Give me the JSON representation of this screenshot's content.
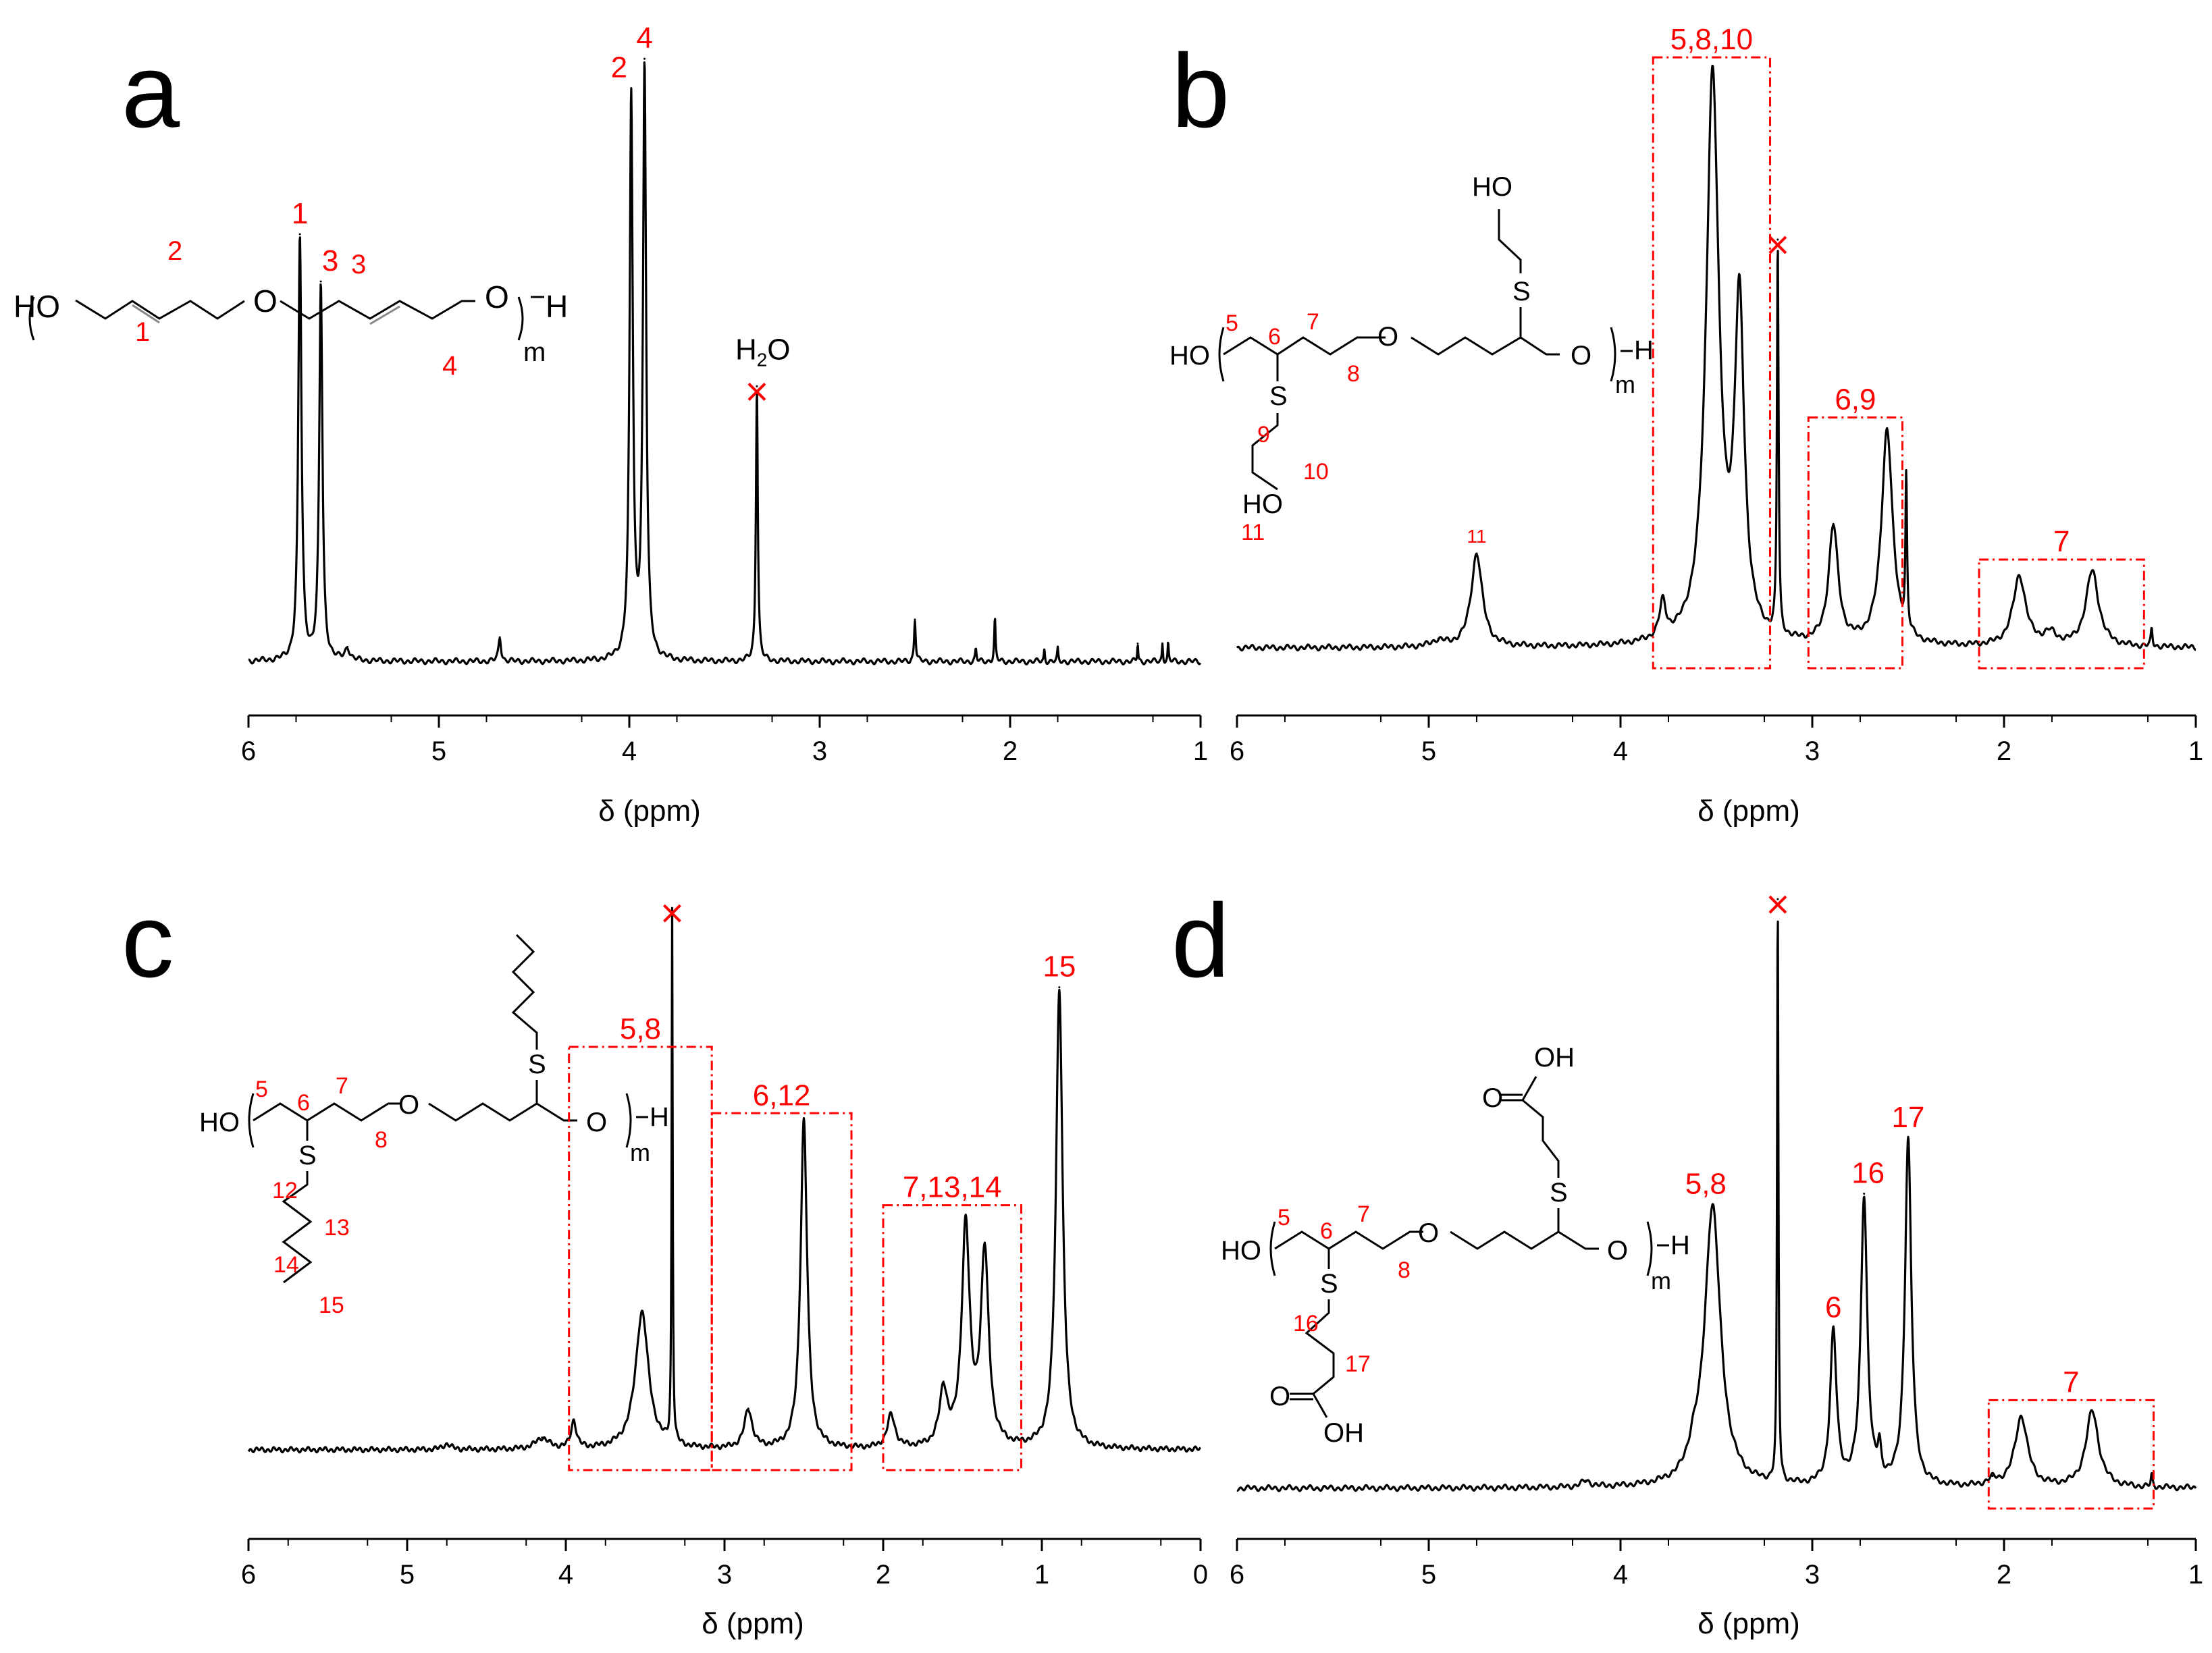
{
  "colors": {
    "spectrum": "#000000",
    "annotation": "#ff0000",
    "axis": "#000000"
  },
  "chart_data": [
    {
      "type": "line",
      "panel": "a",
      "xlabel": "δ (ppm)",
      "xlim": [
        6,
        1
      ],
      "x_reversed": true,
      "xticks": [
        6,
        5,
        4,
        3,
        2,
        1
      ],
      "xtick_labels": [
        "6",
        "5",
        "4",
        "3",
        "2",
        "1"
      ],
      "ylim": [
        0,
        1
      ],
      "baseline": 0.02,
      "series": [
        {
          "name": "spectrum",
          "peaks": [
            {
              "x": 5.73,
              "h": 0.71,
              "w": 0.01
            },
            {
              "x": 5.62,
              "h": 0.63,
              "w": 0.01
            },
            {
              "x": 5.48,
              "h": 0.02,
              "w": 0.015
            },
            {
              "x": 4.68,
              "h": 0.04,
              "w": 0.008
            },
            {
              "x": 3.99,
              "h": 0.94,
              "w": 0.01
            },
            {
              "x": 3.92,
              "h": 0.99,
              "w": 0.01
            },
            {
              "x": 3.33,
              "h": 0.46,
              "w": 0.006
            },
            {
              "x": 2.5,
              "h": 0.07,
              "w": 0.005
            },
            {
              "x": 2.18,
              "h": 0.02,
              "w": 0.004
            },
            {
              "x": 2.08,
              "h": 0.07,
              "w": 0.004
            },
            {
              "x": 1.82,
              "h": 0.02,
              "w": 0.003
            },
            {
              "x": 1.75,
              "h": 0.02,
              "w": 0.003
            },
            {
              "x": 1.33,
              "h": 0.03,
              "w": 0.003
            },
            {
              "x": 1.2,
              "h": 0.03,
              "w": 0.003
            },
            {
              "x": 1.17,
              "h": 0.03,
              "w": 0.003
            }
          ]
        }
      ],
      "peak_labels": [
        {
          "x": 5.73,
          "text": "1"
        },
        {
          "x": 5.62,
          "text": "3"
        },
        {
          "x": 3.99,
          "text": "2"
        },
        {
          "x": 3.92,
          "text": "4"
        }
      ],
      "solvent_peaks": [
        3.33
      ],
      "water_label": {
        "h": "H",
        "sub": "2",
        "o": "O"
      },
      "boxes": [],
      "structure": {
        "ho": "HO",
        "ether_o1": "O",
        "ether_o2": "O",
        "h_end": "H",
        "repeat": "m",
        "locants": [
          "2",
          "1",
          "3",
          "4"
        ]
      }
    },
    {
      "type": "line",
      "panel": "b",
      "xlabel": "δ (ppm)",
      "xlim": [
        6,
        1
      ],
      "x_reversed": true,
      "xticks": [
        6,
        5,
        4,
        3,
        2,
        1
      ],
      "xtick_labels": [
        "6",
        "5",
        "4",
        "3",
        "2",
        "1"
      ],
      "ylim": [
        0,
        1
      ],
      "baseline": 0.02,
      "series": [
        {
          "name": "spectrum",
          "peaks": [
            {
              "x": 4.95,
              "h": 0.01,
              "w": 0.04
            },
            {
              "x": 4.75,
              "h": 0.16,
              "w": 0.035
            },
            {
              "x": 3.78,
              "h": 0.06,
              "w": 0.02
            },
            {
              "x": 3.52,
              "h": 0.97,
              "w": 0.04
            },
            {
              "x": 3.38,
              "h": 0.56,
              "w": 0.03
            },
            {
              "x": 3.18,
              "h": 0.67,
              "w": 0.005
            },
            {
              "x": 2.89,
              "h": 0.2,
              "w": 0.03
            },
            {
              "x": 2.61,
              "h": 0.37,
              "w": 0.035
            },
            {
              "x": 2.51,
              "h": 0.26,
              "w": 0.005
            },
            {
              "x": 1.92,
              "h": 0.12,
              "w": 0.04
            },
            {
              "x": 1.76,
              "h": 0.02,
              "w": 0.04
            },
            {
              "x": 1.54,
              "h": 0.13,
              "w": 0.04
            },
            {
              "x": 1.23,
              "h": 0.03,
              "w": 0.005
            }
          ]
        }
      ],
      "peak_labels": [
        {
          "x": 4.75,
          "text": "11"
        }
      ],
      "solvent_peaks": [
        3.18
      ],
      "boxes": [
        {
          "x1": 3.83,
          "x2": 3.22,
          "label": "5,8,10"
        },
        {
          "x1": 3.02,
          "x2": 2.53,
          "label": "6,9"
        },
        {
          "x1": 2.13,
          "x2": 1.27,
          "label": "7"
        }
      ],
      "structure": {
        "ho": "HO",
        "ether_o": "O",
        "end_o": "O",
        "h_end": "H",
        "repeat": "m",
        "s1": "S",
        "s2": "S",
        "side_ho": "HO",
        "top_ho": "HO",
        "locants": [
          "5",
          "6",
          "7",
          "8",
          "9",
          "10",
          "11"
        ]
      }
    },
    {
      "type": "line",
      "panel": "c",
      "xlabel": "δ (ppm)",
      "xlim": [
        6,
        0
      ],
      "x_reversed": true,
      "xticks": [
        6,
        5,
        4,
        3,
        2,
        1,
        0
      ],
      "xtick_labels": [
        "6",
        "5",
        "4",
        "3",
        "2",
        "1",
        "0"
      ],
      "ylim": [
        0,
        1
      ],
      "baseline": 0.02,
      "series": [
        {
          "name": "spectrum",
          "peaks": [
            {
              "x": 4.75,
              "h": 0.01,
              "w": 0.03
            },
            {
              "x": 4.15,
              "h": 0.02,
              "w": 0.05
            },
            {
              "x": 3.95,
              "h": 0.05,
              "w": 0.02
            },
            {
              "x": 3.52,
              "h": 0.25,
              "w": 0.05
            },
            {
              "x": 3.33,
              "h": 0.97,
              "w": 0.004
            },
            {
              "x": 2.85,
              "h": 0.07,
              "w": 0.03
            },
            {
              "x": 2.5,
              "h": 0.6,
              "w": 0.025
            },
            {
              "x": 1.95,
              "h": 0.06,
              "w": 0.03
            },
            {
              "x": 1.62,
              "h": 0.1,
              "w": 0.03
            },
            {
              "x": 1.48,
              "h": 0.4,
              "w": 0.03
            },
            {
              "x": 1.36,
              "h": 0.35,
              "w": 0.03
            },
            {
              "x": 0.89,
              "h": 0.84,
              "w": 0.025
            }
          ]
        }
      ],
      "peak_labels": [
        {
          "x": 0.89,
          "text": "15"
        }
      ],
      "solvent_peaks": [
        3.33
      ],
      "boxes": [
        {
          "x1": 3.98,
          "x2": 3.08,
          "label": "5,8"
        },
        {
          "x1": 3.08,
          "x2": 2.2,
          "label": "6,12"
        },
        {
          "x1": 2.0,
          "x2": 1.13,
          "label": "7,13,14"
        }
      ],
      "structure": {
        "ho": "HO",
        "ether_o": "O",
        "end_o": "O",
        "h_end": "H",
        "repeat": "m",
        "s1": "S",
        "s2": "S",
        "locants": [
          "5",
          "6",
          "7",
          "8",
          "12",
          "13",
          "14",
          "15"
        ]
      }
    },
    {
      "type": "line",
      "panel": "d",
      "xlabel": "δ (ppm)",
      "xlim": [
        6,
        1
      ],
      "x_reversed": true,
      "xticks": [
        6,
        5,
        4,
        3,
        2,
        1
      ],
      "xtick_labels": [
        "6",
        "5",
        "4",
        "3",
        "2",
        "1"
      ],
      "ylim": [
        0,
        1
      ],
      "baseline": 0.02,
      "series": [
        {
          "name": "spectrum",
          "peaks": [
            {
              "x": 4.18,
              "h": 0.01,
              "w": 0.03
            },
            {
              "x": 3.62,
              "h": 0.03,
              "w": 0.03
            },
            {
              "x": 3.52,
              "h": 0.48,
              "w": 0.05
            },
            {
              "x": 3.18,
              "h": 0.99,
              "w": 0.004
            },
            {
              "x": 2.89,
              "h": 0.26,
              "w": 0.02
            },
            {
              "x": 2.73,
              "h": 0.49,
              "w": 0.02
            },
            {
              "x": 2.65,
              "h": 0.05,
              "w": 0.01
            },
            {
              "x": 2.5,
              "h": 0.59,
              "w": 0.02
            },
            {
              "x": 2.06,
              "h": 0.01,
              "w": 0.03
            },
            {
              "x": 1.91,
              "h": 0.12,
              "w": 0.04
            },
            {
              "x": 1.54,
              "h": 0.13,
              "w": 0.04
            },
            {
              "x": 1.23,
              "h": 0.02,
              "w": 0.005
            }
          ]
        }
      ],
      "peak_labels": [
        {
          "x": 3.52,
          "text": "5,8"
        },
        {
          "x": 2.89,
          "text": "6"
        },
        {
          "x": 2.73,
          "text": "16"
        },
        {
          "x": 2.5,
          "text": "17"
        }
      ],
      "solvent_peaks": [
        3.18
      ],
      "boxes": [
        {
          "x1": 2.08,
          "x2": 1.22,
          "label": "7"
        }
      ],
      "structure": {
        "ho": "HO",
        "ether_o": "O",
        "end_o": "O",
        "h_end": "H",
        "repeat": "m",
        "s1": "S",
        "s2": "S",
        "carbonyl_o1": "O",
        "oh1": "OH",
        "carbonyl_o2": "O",
        "oh2": "OH",
        "locants": [
          "5",
          "6",
          "7",
          "8",
          "16",
          "17"
        ]
      }
    }
  ]
}
